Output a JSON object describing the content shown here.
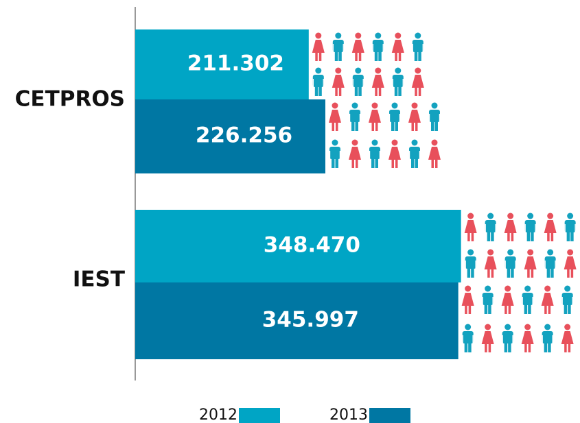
{
  "chart_data": {
    "type": "hbar",
    "categories": [
      "CETPROS",
      "IEST"
    ],
    "series": [
      {
        "name": "2012",
        "color": "#00a5c5",
        "values": [
          211302,
          348470
        ],
        "value_labels": [
          "211.302",
          "348.470"
        ]
      },
      {
        "name": "2013",
        "color": "#0077a3",
        "values": [
          226256,
          345997
        ],
        "value_labels": [
          "226.256",
          "345.997"
        ]
      }
    ],
    "xlim": [
      55000,
      400000
    ]
  }
}
